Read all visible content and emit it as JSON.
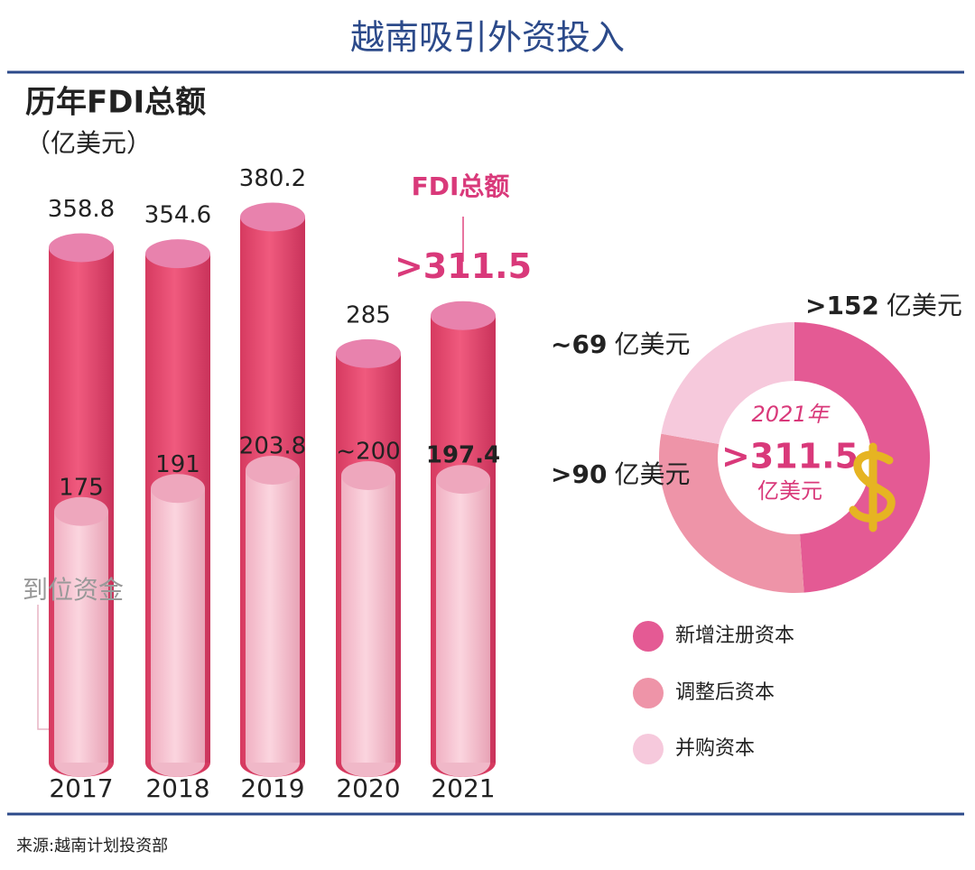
{
  "title": "越南吸引外资投入",
  "source": "来源:越南计划投资部",
  "chart_data": [
    {
      "type": "bar",
      "title": "历年FDI总额",
      "subtitle": "（亿美元）",
      "categories": [
        "2017",
        "2018",
        "2019",
        "2020",
        "2021"
      ],
      "series": [
        {
          "name": "FDI总额",
          "color": "#e8466d",
          "values": [
            358.8,
            354.6,
            380.2,
            285,
            311.5
          ],
          "value_labels": [
            "358.8",
            "354.6",
            "380.2",
            "285",
            ">311.5"
          ]
        },
        {
          "name": "到位资金",
          "color": "#f7c3d1",
          "values": [
            175,
            191,
            203.8,
            200,
            197.4
          ],
          "value_labels": [
            "175",
            "191",
            "203.8",
            "~200",
            "197.4"
          ]
        }
      ]
    },
    {
      "type": "pie",
      "categories": [
        "新增注册资本",
        "调整后资本",
        "并购资本"
      ],
      "values": [
        152,
        90,
        69
      ],
      "value_labels": [
        ">152",
        ">90",
        "~69"
      ],
      "colors": [
        "#e45a94",
        "#ee94a8",
        "#f6c9dc"
      ],
      "unit": "亿美元",
      "center_title": "2021年"
    }
  ]
}
